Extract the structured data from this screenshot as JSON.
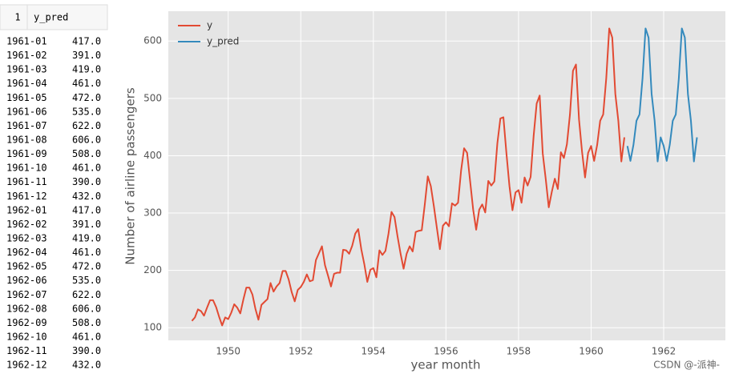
{
  "table": {
    "header": [
      "1",
      "y_pred"
    ],
    "rows": [
      [
        "1961-01",
        "417.0"
      ],
      [
        "1961-02",
        "391.0"
      ],
      [
        "1961-03",
        "419.0"
      ],
      [
        "1961-04",
        "461.0"
      ],
      [
        "1961-05",
        "472.0"
      ],
      [
        "1961-06",
        "535.0"
      ],
      [
        "1961-07",
        "622.0"
      ],
      [
        "1961-08",
        "606.0"
      ],
      [
        "1961-09",
        "508.0"
      ],
      [
        "1961-10",
        "461.0"
      ],
      [
        "1961-11",
        "390.0"
      ],
      [
        "1961-12",
        "432.0"
      ],
      [
        "1962-01",
        "417.0"
      ],
      [
        "1962-02",
        "391.0"
      ],
      [
        "1962-03",
        "419.0"
      ],
      [
        "1962-04",
        "461.0"
      ],
      [
        "1962-05",
        "472.0"
      ],
      [
        "1962-06",
        "535.0"
      ],
      [
        "1962-07",
        "622.0"
      ],
      [
        "1962-08",
        "606.0"
      ],
      [
        "1962-09",
        "508.0"
      ],
      [
        "1962-10",
        "461.0"
      ],
      [
        "1962-11",
        "390.0"
      ],
      [
        "1962-12",
        "432.0"
      ]
    ]
  },
  "chart_data": {
    "type": "line",
    "xlabel": "year month",
    "ylabel": "Number of airline passengers",
    "xlim": [
      1948.35,
      1963.7
    ],
    "ylim": [
      78,
      652
    ],
    "xticks": [
      1950,
      1952,
      1954,
      1956,
      1958,
      1960,
      1962
    ],
    "yticks": [
      100,
      200,
      300,
      400,
      500,
      600
    ],
    "grid": true,
    "legend": "upper left",
    "series": [
      {
        "name": "y",
        "color": "#e24a33",
        "x": [
          1949,
          1949.083,
          1949.167,
          1949.25,
          1949.333,
          1949.417,
          1949.5,
          1949.583,
          1949.667,
          1949.75,
          1949.833,
          1949.917,
          1950,
          1950.083,
          1950.167,
          1950.25,
          1950.333,
          1950.417,
          1950.5,
          1950.583,
          1950.667,
          1950.75,
          1950.833,
          1950.917,
          1951,
          1951.083,
          1951.167,
          1951.25,
          1951.333,
          1951.417,
          1951.5,
          1951.583,
          1951.667,
          1951.75,
          1951.833,
          1951.917,
          1952,
          1952.083,
          1952.167,
          1952.25,
          1952.333,
          1952.417,
          1952.5,
          1952.583,
          1952.667,
          1952.75,
          1952.833,
          1952.917,
          1953,
          1953.083,
          1953.167,
          1953.25,
          1953.333,
          1953.417,
          1953.5,
          1953.583,
          1953.667,
          1953.75,
          1953.833,
          1953.917,
          1954,
          1954.083,
          1954.167,
          1954.25,
          1954.333,
          1954.417,
          1954.5,
          1954.583,
          1954.667,
          1954.75,
          1954.833,
          1954.917,
          1955,
          1955.083,
          1955.167,
          1955.25,
          1955.333,
          1955.417,
          1955.5,
          1955.583,
          1955.667,
          1955.75,
          1955.833,
          1955.917,
          1956,
          1956.083,
          1956.167,
          1956.25,
          1956.333,
          1956.417,
          1956.5,
          1956.583,
          1956.667,
          1956.75,
          1956.833,
          1956.917,
          1957,
          1957.083,
          1957.167,
          1957.25,
          1957.333,
          1957.417,
          1957.5,
          1957.583,
          1957.667,
          1957.75,
          1957.833,
          1957.917,
          1958,
          1958.083,
          1958.167,
          1958.25,
          1958.333,
          1958.417,
          1958.5,
          1958.583,
          1958.667,
          1958.75,
          1958.833,
          1958.917,
          1959,
          1959.083,
          1959.167,
          1959.25,
          1959.333,
          1959.417,
          1959.5,
          1959.583,
          1959.667,
          1959.75,
          1959.833,
          1959.917,
          1960,
          1960.083,
          1960.167,
          1960.25,
          1960.333,
          1960.417,
          1960.5,
          1960.583,
          1960.667,
          1960.75,
          1960.833,
          1960.917
        ],
        "values": [
          112,
          118,
          132,
          129,
          121,
          135,
          148,
          148,
          136,
          119,
          104,
          118,
          115,
          126,
          141,
          135,
          125,
          149,
          170,
          170,
          158,
          133,
          114,
          140,
          145,
          150,
          178,
          163,
          172,
          178,
          199,
          199,
          184,
          162,
          146,
          166,
          171,
          180,
          193,
          181,
          183,
          218,
          230,
          242,
          209,
          191,
          172,
          194,
          196,
          196,
          236,
          235,
          229,
          243,
          264,
          272,
          237,
          211,
          180,
          201,
          204,
          188,
          235,
          227,
          234,
          264,
          302,
          293,
          259,
          229,
          203,
          229,
          242,
          233,
          267,
          269,
          270,
          315,
          364,
          347,
          312,
          274,
          237,
          278,
          284,
          277,
          317,
          313,
          318,
          374,
          413,
          405,
          355,
          306,
          271,
          306,
          315,
          301,
          356,
          348,
          355,
          422,
          465,
          467,
          404,
          347,
          305,
          336,
          340,
          318,
          362,
          348,
          363,
          435,
          491,
          505,
          404,
          359,
          310,
          337,
          360,
          342,
          406,
          396,
          420,
          472,
          548,
          559,
          463,
          407,
          362,
          405,
          417,
          391,
          419,
          461,
          472,
          535,
          622,
          606,
          508,
          461,
          390,
          432
        ]
      },
      {
        "name": "y_pred",
        "color": "#348abd",
        "x": [
          1961,
          1961.083,
          1961.167,
          1961.25,
          1961.333,
          1961.417,
          1961.5,
          1961.583,
          1961.667,
          1961.75,
          1961.833,
          1961.917,
          1962,
          1962.083,
          1962.167,
          1962.25,
          1962.333,
          1962.417,
          1962.5,
          1962.583,
          1962.667,
          1962.75,
          1962.833,
          1962.917
        ],
        "values": [
          417,
          391,
          419,
          461,
          472,
          535,
          622,
          606,
          508,
          461,
          390,
          432,
          417,
          391,
          419,
          461,
          472,
          535,
          622,
          606,
          508,
          461,
          390,
          432
        ]
      }
    ]
  },
  "watermark": "CSDN @-派神-"
}
